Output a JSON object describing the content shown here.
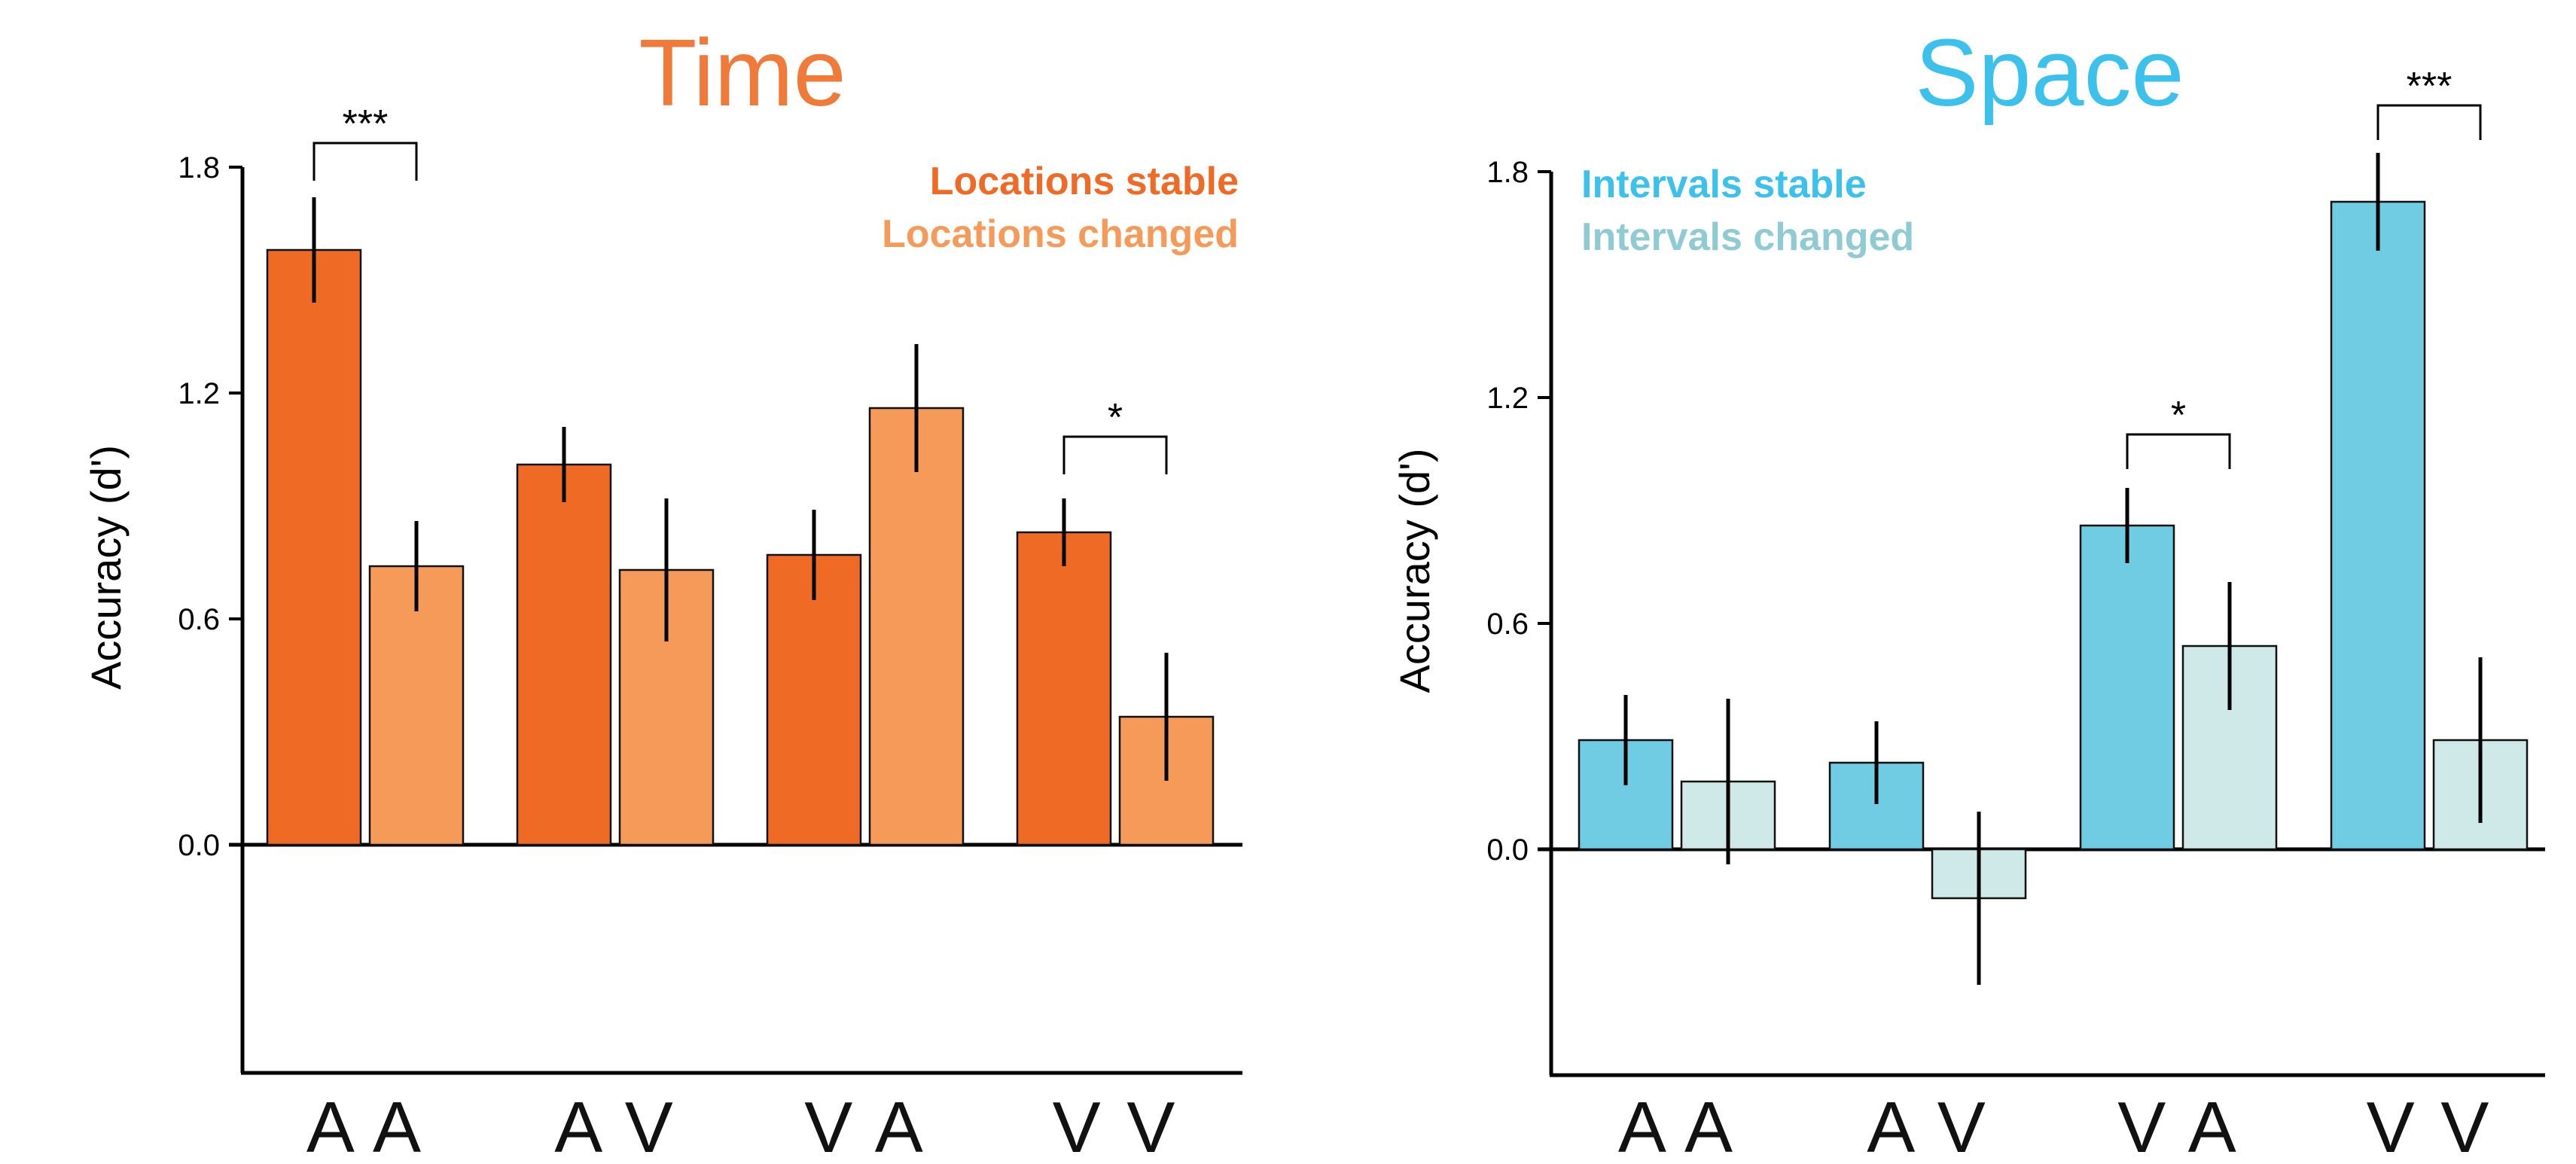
{
  "chart_data": [
    {
      "type": "bar",
      "title": "Time",
      "title_color": "#F07A3A",
      "ylabel": "Accuracy (d')",
      "xlabel": "",
      "ylim": [
        -0.6,
        1.8
      ],
      "yticks": [
        "1.8",
        "1.2",
        "0.6",
        "0.0"
      ],
      "categories": [
        "A A",
        "A V",
        "V A",
        "V V"
      ],
      "grid": false,
      "legend_position": "top-right",
      "series": [
        {
          "name": "Locations stable",
          "color": "#EF6A24",
          "values": [
            1.58,
            1.01,
            0.77,
            0.83
          ],
          "errors": [
            0.14,
            0.1,
            0.12,
            0.09
          ]
        },
        {
          "name": "Locations changed",
          "color": "#F59A58",
          "values": [
            0.74,
            0.73,
            1.16,
            0.34
          ],
          "errors": [
            0.12,
            0.19,
            0.17,
            0.17
          ]
        }
      ],
      "significance": [
        {
          "category": "A A",
          "label": "***"
        },
        {
          "category": "V V",
          "label": "*"
        }
      ]
    },
    {
      "type": "bar",
      "title": "Space",
      "title_color": "#3BC1EC",
      "ylabel": "Accuracy (d')",
      "xlabel": "",
      "ylim": [
        -0.6,
        1.8
      ],
      "yticks": [
        "1.8",
        "1.2",
        "0.6",
        "0.0"
      ],
      "categories": [
        "A A",
        "A V",
        "V A",
        "V V"
      ],
      "grid": false,
      "legend_position": "top-left",
      "series": [
        {
          "name": "Intervals stable",
          "color": "#6FCCE2",
          "values": [
            0.29,
            0.23,
            0.86,
            1.72
          ],
          "errors": [
            0.12,
            0.11,
            0.1,
            0.13
          ]
        },
        {
          "name": "Intervals changed",
          "color": "#CFE8E8",
          "values": [
            0.18,
            -0.13,
            0.54,
            0.29
          ],
          "errors": [
            0.22,
            0.23,
            0.17,
            0.22
          ]
        }
      ],
      "significance": [
        {
          "category": "V A",
          "label": "*"
        },
        {
          "category": "V V",
          "label": "***"
        }
      ]
    }
  ],
  "colors": {
    "axis": "#000000",
    "bar_outline": "#111111",
    "legend_time_stable": "#EF6A24",
    "legend_time_changed": "#F59A58",
    "legend_space_stable": "#3BC1EC",
    "legend_space_changed": "#8FCBD3"
  }
}
